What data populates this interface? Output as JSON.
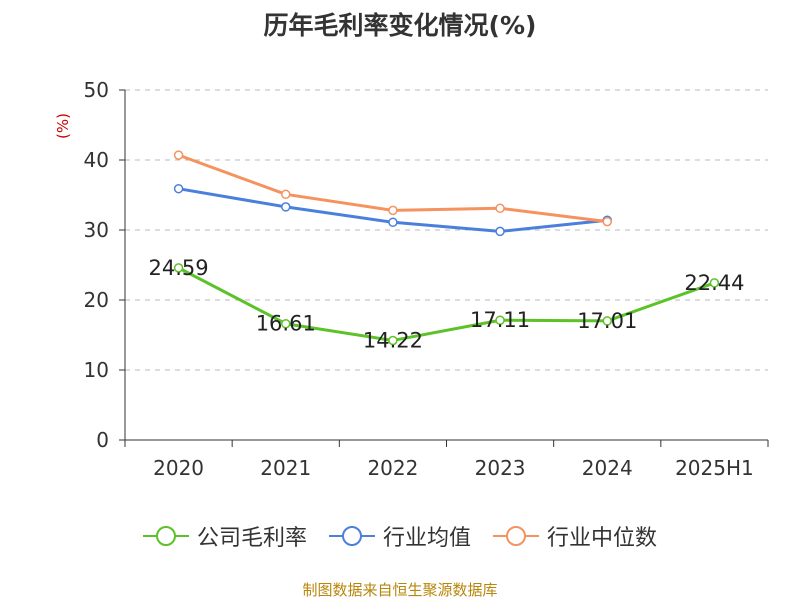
{
  "chart_data": {
    "type": "line",
    "title": "历年毛利率变化情况(%)",
    "ylabel": "(%)",
    "xlabel": "",
    "categories": [
      "2020",
      "2021",
      "2022",
      "2023",
      "2024",
      "2025H1"
    ],
    "ylim": [
      0,
      50
    ],
    "yticks": [
      0,
      10,
      20,
      30,
      40,
      50
    ],
    "grid": true,
    "legend_position": "bottom",
    "series": [
      {
        "name": "公司毛利率",
        "color": "#5cc228",
        "values": [
          24.59,
          16.61,
          14.22,
          17.11,
          17.01,
          22.44
        ],
        "labels": [
          "24.59",
          "16.61",
          "14.22",
          "17.11",
          "17.01",
          "22.44"
        ]
      },
      {
        "name": "行业均值",
        "color": "#4b7fdc",
        "values": [
          35.9,
          33.3,
          31.1,
          29.8,
          31.4,
          null
        ]
      },
      {
        "name": "行业中位数",
        "color": "#f5925e",
        "values": [
          40.7,
          35.1,
          32.8,
          33.1,
          31.2,
          null
        ]
      }
    ]
  },
  "footer": {
    "source": "制图数据来自恒生聚源数据库"
  }
}
